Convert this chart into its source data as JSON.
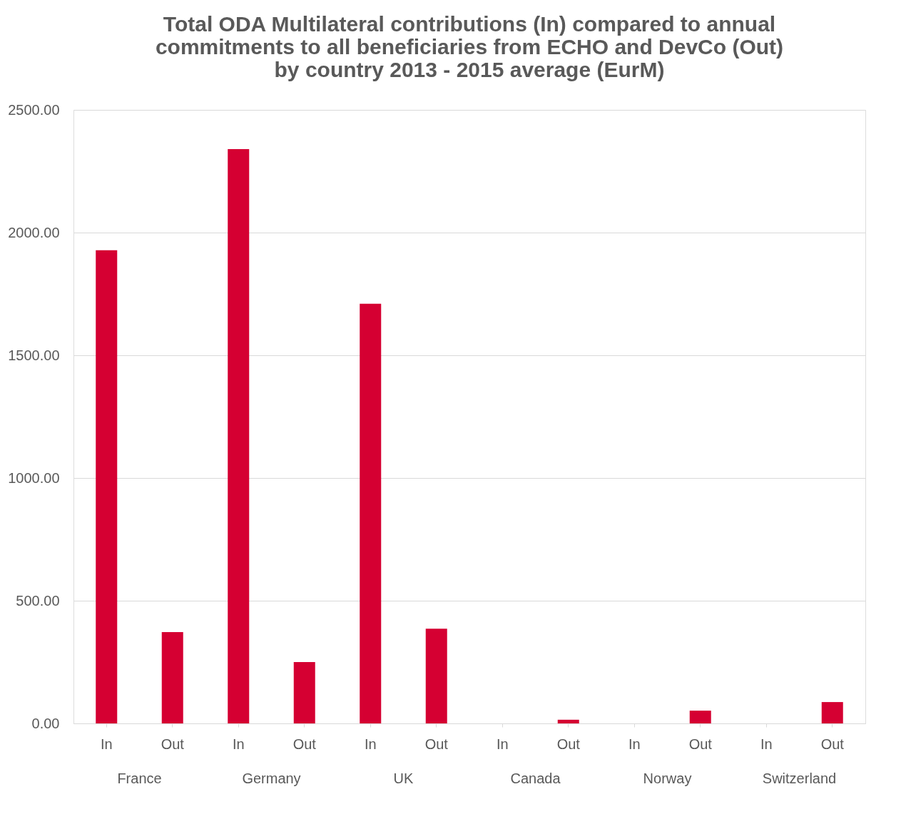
{
  "chart_data": {
    "type": "bar",
    "title": "Total ODA Multilateral contributions (In) compared to annual\ncommitments to all beneficiaries from ECHO and DevCo (Out)\nby country 2013 - 2015 average (EurM)",
    "categories": [
      "In",
      "Out",
      "In",
      "Out",
      "In",
      "Out",
      "In",
      "Out",
      "In",
      "Out",
      "In",
      "Out"
    ],
    "values": [
      1928,
      372,
      2340,
      250,
      1710,
      386,
      null,
      15,
      null,
      52,
      null,
      87
    ],
    "color": "#d50032",
    "ylim": [
      0,
      2500
    ],
    "yticks": [
      {
        "value": 0,
        "label": "0.00"
      },
      {
        "value": 500,
        "label": "500.00"
      },
      {
        "value": 1000,
        "label": "1000.00"
      },
      {
        "value": 1500,
        "label": "1500.00"
      },
      {
        "value": 2000,
        "label": "2000.00"
      },
      {
        "value": 2500,
        "label": "2500.00"
      }
    ],
    "grid": "y",
    "annotations": [
      "France",
      "Germany",
      "UK",
      "Canada",
      "Norway",
      "Switzerland"
    ]
  }
}
